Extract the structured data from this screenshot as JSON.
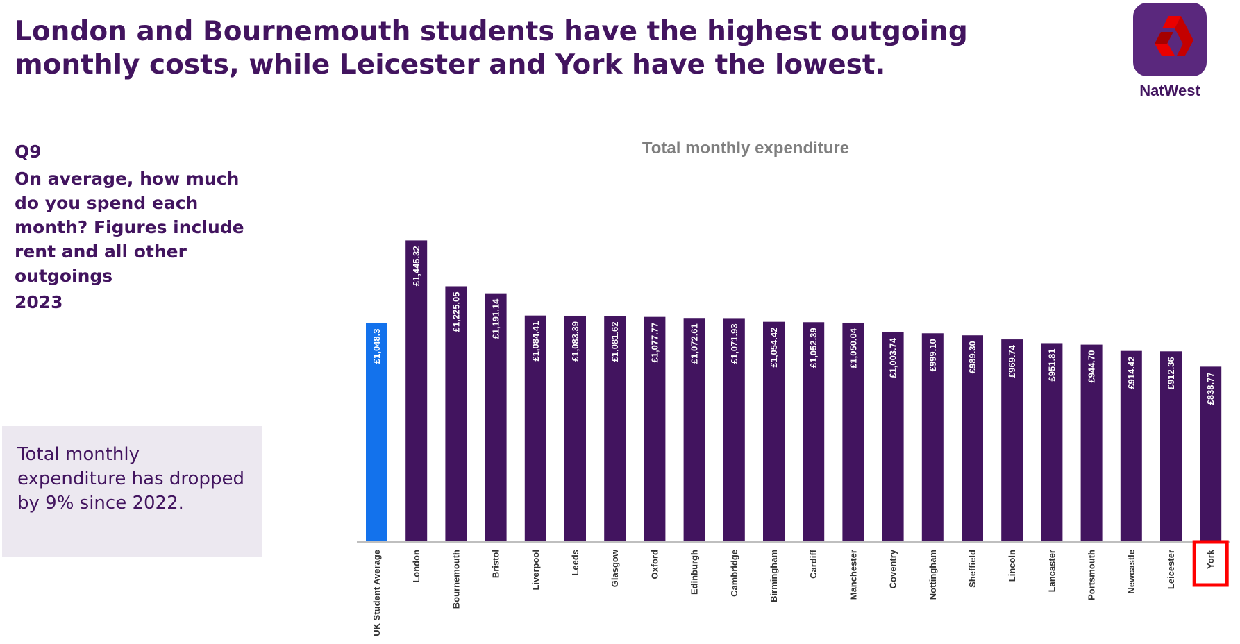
{
  "headline": "London and Bournemouth students have the highest outgoing monthly costs, while Leicester and York have the lowest.",
  "logo": {
    "icon": "natwest-logo-icon",
    "wordmark": "NatWest",
    "brand_color": "#5a287d",
    "icon_color": "#e90000"
  },
  "question": {
    "number": "Q9",
    "text": "On average, how much do you spend each month? Figures include rent and all other outgoings",
    "year": "2023"
  },
  "callout": {
    "text": "Total monthly expenditure has dropped by 9% since 2022."
  },
  "chart_data": {
    "type": "bar",
    "title": "Total monthly expenditure",
    "xlabel": "",
    "ylabel": "",
    "ylim": [
      0,
      1500
    ],
    "grid": false,
    "legend": "none",
    "categories": [
      "UK Student Average",
      "London",
      "Bournemouth",
      "Bristol",
      "Liverpool",
      "Leeds",
      "Glasgow",
      "Oxford",
      "Edinburgh",
      "Cambridge",
      "Birmingham",
      "Cardiff",
      "Manchester",
      "Coventry",
      "Nottingham",
      "Sheffield",
      "Lincoln",
      "Lancaster",
      "Portsmouth",
      "Newcastle",
      "Leicester",
      "York"
    ],
    "values": [
      1048.3,
      1445.32,
      1225.05,
      1191.14,
      1084.41,
      1083.39,
      1081.62,
      1077.77,
      1072.61,
      1071.93,
      1054.42,
      1052.39,
      1050.04,
      1003.74,
      999.1,
      989.3,
      969.74,
      951.81,
      944.7,
      914.42,
      912.36,
      838.77
    ],
    "data_labels": [
      "£1,048.3",
      "£1,445.32",
      "£1,225.05",
      "£1,191.14",
      "£1,084.41",
      "£1,083.39",
      "£1,081.62",
      "£1,077.77",
      "£1,072.61",
      "£1,071.93",
      "£1,054.42",
      "£1,052.39",
      "£1,050.04",
      "£1,003.74",
      "£999.10",
      "£989.30",
      "£969.74",
      "£951.81",
      "£944.70",
      "£914.42",
      "£912.36",
      "£838.77"
    ],
    "colors": {
      "bar": "#42145f",
      "highlight_bar": "#1372ec",
      "label_text": "#ffffff",
      "axis_text": "#333333",
      "axis_line": "#bfbfbf",
      "highlight_box": "#ff0000"
    },
    "highlighted_category": "York"
  }
}
